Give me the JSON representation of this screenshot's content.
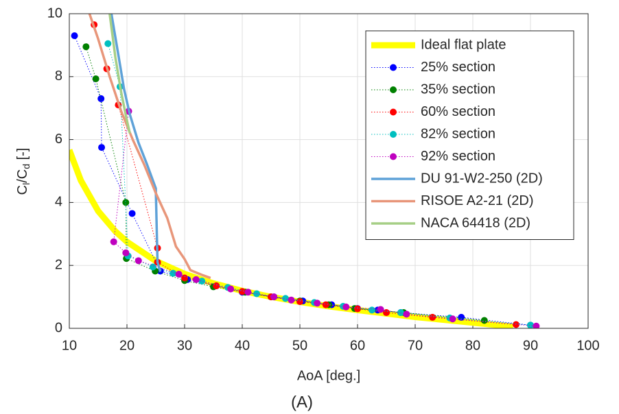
{
  "chart_data": {
    "type": "line",
    "title": "(A)",
    "xlabel": "AoA [deg.]",
    "ylabel": [
      "C",
      "l",
      "/C",
      "d",
      " [-]"
    ],
    "xlim": [
      10,
      100
    ],
    "ylim": [
      0,
      10
    ],
    "xticks": [
      10,
      20,
      30,
      40,
      50,
      60,
      70,
      80,
      90,
      100
    ],
    "yticks": [
      0,
      2,
      4,
      6,
      8,
      10
    ],
    "grid": true,
    "legend": "upper right",
    "series": [
      {
        "name": "Ideal flat plate",
        "color": "#ffff00",
        "linestyle": "solid",
        "linewidth": 9,
        "marker": false,
        "x": [
          10,
          12,
          15,
          18,
          20,
          25,
          30,
          35,
          40,
          45,
          50,
          55,
          60,
          65,
          70,
          75,
          80,
          85,
          87
        ],
        "values": [
          5.67,
          4.7,
          3.73,
          3.08,
          2.75,
          2.14,
          1.73,
          1.43,
          1.19,
          1.0,
          0.84,
          0.7,
          0.58,
          0.47,
          0.36,
          0.27,
          0.18,
          0.09,
          0.05
        ]
      },
      {
        "name": "25% section",
        "color": "#0000ff",
        "linestyle": "dotted",
        "linewidth": 1,
        "marker": true,
        "x": [
          10.9,
          15.5,
          15.6,
          20.9,
          25.8,
          30.5,
          35.5,
          40,
          45.5,
          50.5,
          55.5,
          60,
          63.5,
          67.5,
          78,
          90
        ],
        "values": [
          9.3,
          7.3,
          5.75,
          3.65,
          1.82,
          1.55,
          1.35,
          1.15,
          1.0,
          0.87,
          0.75,
          0.63,
          0.58,
          0.5,
          0.35,
          0.1
        ]
      },
      {
        "name": "35% section",
        "color": "#008000",
        "linestyle": "dotted",
        "linewidth": 1,
        "marker": true,
        "x": [
          12.9,
          14.6,
          19.8,
          19.9,
          24.9,
          30,
          35,
          40.5,
          45,
          50,
          55,
          59.5,
          68,
          82
        ],
        "values": [
          8.95,
          7.93,
          4.0,
          2.22,
          1.82,
          1.52,
          1.32,
          1.15,
          1.0,
          0.87,
          0.75,
          0.63,
          0.5,
          0.25
        ]
      },
      {
        "name": "60% section",
        "color": "#ff0000",
        "linestyle": "dotted",
        "linewidth": 1,
        "marker": true,
        "x": [
          14.3,
          16.5,
          18.5,
          25.3,
          25.3,
          30,
          35.5,
          40,
          45,
          50,
          54.5,
          60,
          65,
          73,
          87.5
        ],
        "values": [
          9.65,
          8.25,
          7.1,
          2.55,
          2.1,
          1.6,
          1.35,
          1.17,
          1.0,
          0.85,
          0.75,
          0.62,
          0.5,
          0.35,
          0.12
        ]
      },
      {
        "name": "82% section",
        "color": "#00bfbf",
        "linestyle": "dotted",
        "linewidth": 1,
        "marker": true,
        "x": [
          16.7,
          18.8,
          20.2,
          24.5,
          28,
          33,
          37.5,
          42.5,
          47.5,
          52.5,
          57.5,
          62.5,
          67.5,
          76,
          90
        ],
        "values": [
          9.05,
          7.68,
          2.3,
          1.95,
          1.75,
          1.5,
          1.3,
          1.1,
          0.95,
          0.82,
          0.7,
          0.58,
          0.5,
          0.33,
          0.1
        ]
      },
      {
        "name": "92% section",
        "color": "#bf00bf",
        "linestyle": "dotted",
        "linewidth": 1,
        "marker": true,
        "x": [
          20.3,
          17.7,
          19.8,
          22,
          29,
          32,
          38,
          41,
          45.5,
          48.5,
          53,
          58,
          64,
          68.5,
          76.5,
          91
        ],
        "values": [
          6.9,
          2.75,
          2.4,
          2.15,
          1.72,
          1.55,
          1.25,
          1.15,
          1.0,
          0.9,
          0.8,
          0.68,
          0.6,
          0.45,
          0.3,
          0.07
        ]
      },
      {
        "name": "DU 91-W2-250 (2D)",
        "color": "#5fa2d8",
        "linestyle": "solid",
        "linewidth": 3.5,
        "marker": false,
        "x": [
          17.3,
          18.5,
          19.5,
          20.5,
          22,
          23.5,
          25,
          25.3,
          25.8
        ],
        "values": [
          10,
          8.7,
          7.6,
          6.8,
          5.9,
          5.2,
          4.45,
          2.1,
          1.8
        ]
      },
      {
        "name": "RISOE A2-21 (2D)",
        "color": "#e8967a",
        "linestyle": "solid",
        "linewidth": 3.5,
        "marker": false,
        "x": [
          13.5,
          15,
          17,
          19,
          21,
          23,
          25,
          27,
          28.5,
          30,
          31,
          33,
          34.5
        ],
        "values": [
          10,
          9.2,
          8,
          6.9,
          6,
          5.2,
          4.3,
          3.5,
          2.6,
          2.2,
          1.85,
          1.7,
          1.6
        ]
      },
      {
        "name": "NACA 64418 (2D)",
        "color": "#a6cf86",
        "linestyle": "solid",
        "linewidth": 3.5,
        "marker": false,
        "x": [
          17,
          18,
          19,
          20,
          20.5
        ],
        "values": [
          10,
          8.6,
          7.5,
          6.6,
          6.2
        ]
      }
    ]
  }
}
